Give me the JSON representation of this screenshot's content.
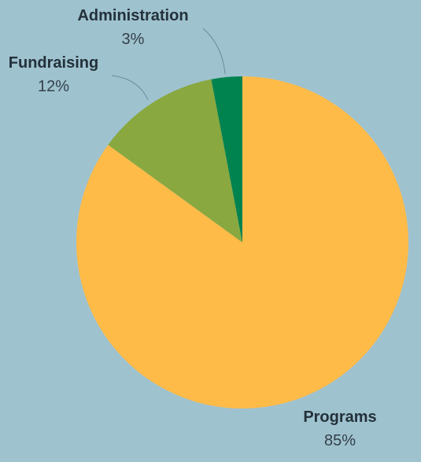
{
  "chart_data": {
    "type": "pie",
    "title": "",
    "legend": "none",
    "start_angle_deg": 0,
    "direction": "clockwise",
    "slices": [
      {
        "label": "Programs",
        "value": 85,
        "value_label": "85%",
        "color": "#ffbb48"
      },
      {
        "label": "Fundraising",
        "value": 12,
        "value_label": "12%",
        "color": "#89a83f"
      },
      {
        "label": "Administration",
        "value": 3,
        "value_label": "3%",
        "color": "#00834f"
      }
    ]
  },
  "colors": {
    "background": "#9fc2cf",
    "label_text": "#23313a",
    "leader_line": "#6a8d96"
  }
}
